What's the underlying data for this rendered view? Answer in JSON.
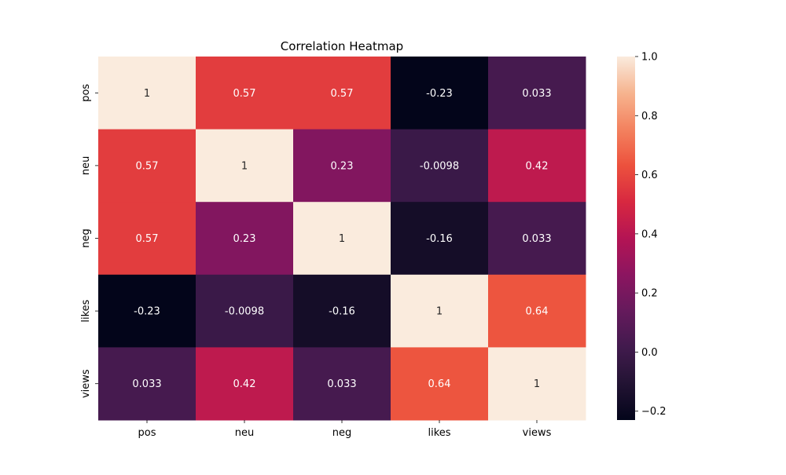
{
  "chart_data": {
    "type": "heatmap",
    "title": "Correlation Heatmap",
    "xlabel": "",
    "ylabel": "",
    "x_categories": [
      "pos",
      "neu",
      "neg",
      "likes",
      "views"
    ],
    "y_categories": [
      "pos",
      "neu",
      "neg",
      "likes",
      "views"
    ],
    "values": [
      [
        1,
        0.57,
        0.57,
        -0.23,
        0.033
      ],
      [
        0.57,
        1,
        0.23,
        -0.0098,
        0.42
      ],
      [
        0.57,
        0.23,
        1,
        -0.16,
        0.033
      ],
      [
        -0.23,
        -0.0098,
        -0.16,
        1,
        0.64
      ],
      [
        0.033,
        0.42,
        0.033,
        0.64,
        1
      ]
    ],
    "cell_labels": [
      [
        "1",
        "0.57",
        "0.57",
        "-0.23",
        "0.033"
      ],
      [
        "0.57",
        "1",
        "0.23",
        "-0.0098",
        "0.42"
      ],
      [
        "0.57",
        "0.23",
        "1",
        "-0.16",
        "0.033"
      ],
      [
        "-0.23",
        "-0.0098",
        "-0.16",
        "1",
        "0.64"
      ],
      [
        "0.033",
        "0.42",
        "0.033",
        "0.64",
        "1"
      ]
    ],
    "colormap": "rocket",
    "vmin": -0.23,
    "vmax": 1.0,
    "colorbar": {
      "ticks": [
        1.0,
        0.8,
        0.6,
        0.4,
        0.2,
        0.0,
        -0.2
      ],
      "tick_labels": [
        "1.0",
        "0.8",
        "0.6",
        "0.4",
        "0.2",
        "0.0",
        "−0.2"
      ],
      "placement": "right"
    },
    "legend": "none",
    "grid": false
  }
}
